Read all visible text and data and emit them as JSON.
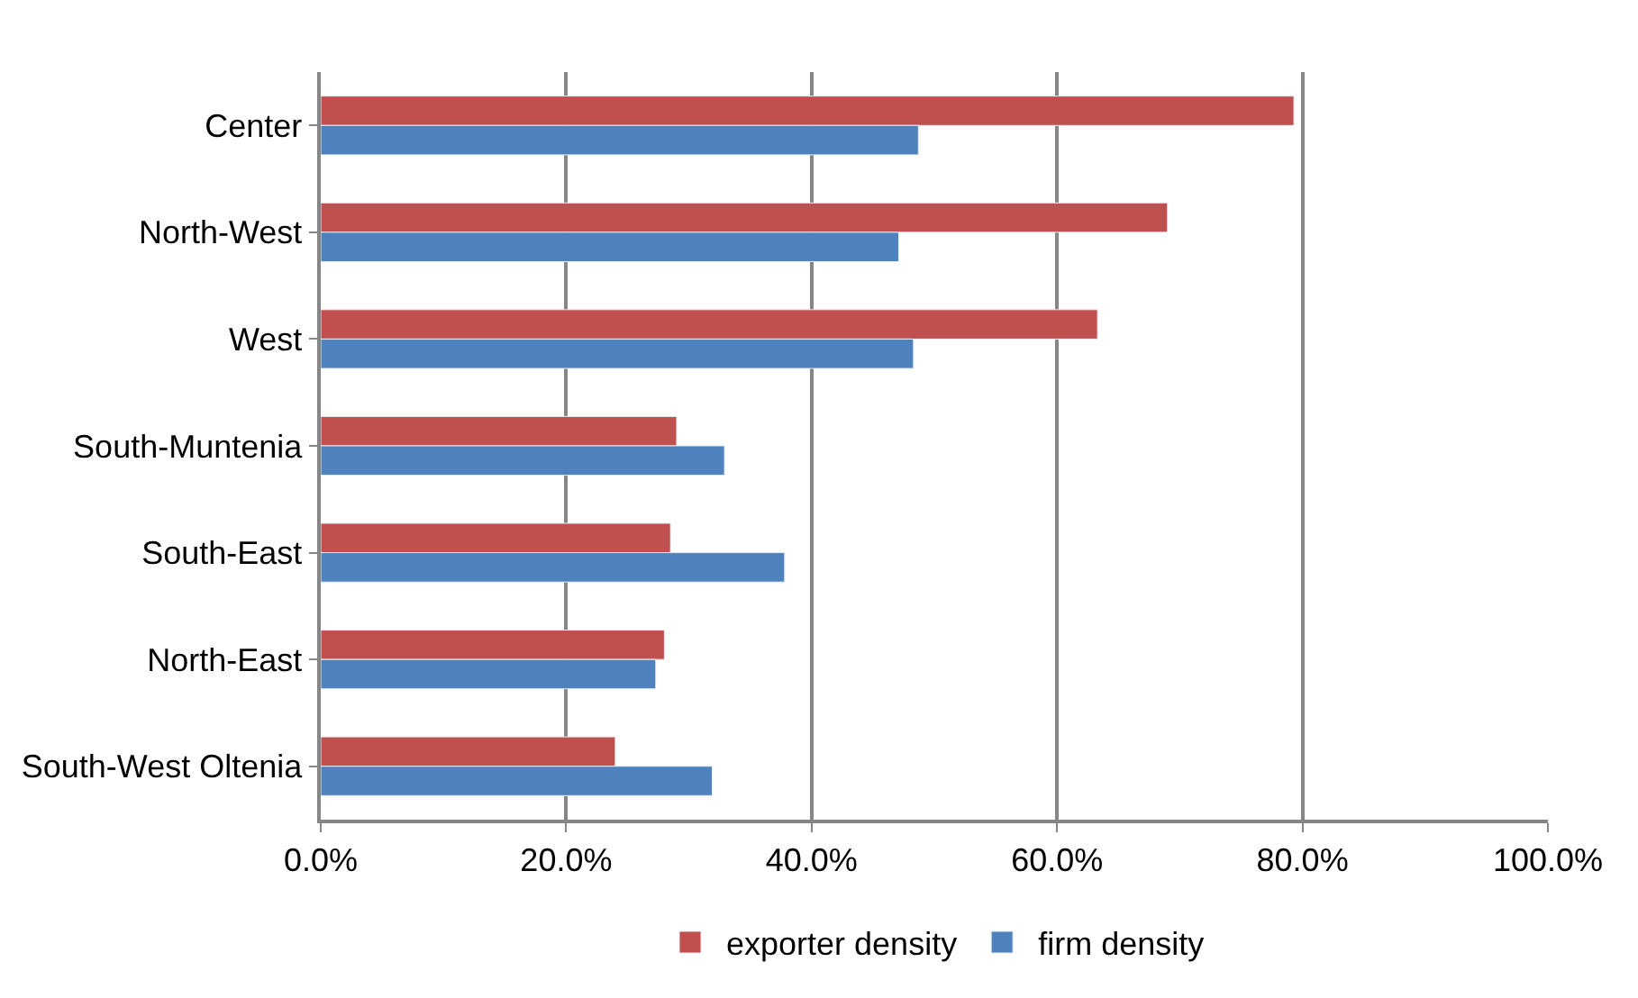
{
  "chart_data": {
    "type": "bar",
    "orientation": "horizontal",
    "categories": [
      "Center",
      "North-West",
      "West",
      "South-Muntenia",
      "South-East",
      "North-East",
      "South-West Oltenia"
    ],
    "series": [
      {
        "name": "exporter density",
        "color": "#c0504d",
        "values": [
          79.3,
          69.0,
          63.3,
          29.0,
          28.5,
          28.0,
          24.0
        ]
      },
      {
        "name": "firm density",
        "color": "#4f81bd",
        "values": [
          48.7,
          47.1,
          48.3,
          32.9,
          37.8,
          27.3,
          31.9
        ]
      }
    ],
    "xlim": [
      0,
      100
    ],
    "xticks": [
      {
        "value": 0,
        "label": "0.0%"
      },
      {
        "value": 20,
        "label": "20.0%"
      },
      {
        "value": 40,
        "label": "40.0%"
      },
      {
        "value": 60,
        "label": "60.0%"
      },
      {
        "value": 80,
        "label": "80.0%"
      },
      {
        "value": 100,
        "label": "100.0%"
      }
    ],
    "grid": "x",
    "legend": "bottom"
  }
}
